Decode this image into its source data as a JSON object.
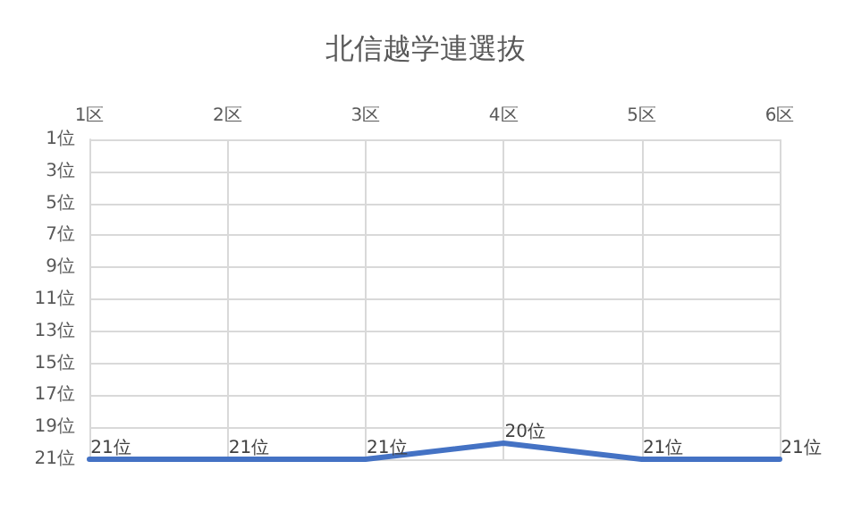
{
  "chart_data": {
    "type": "line",
    "title": "北信越学連選抜",
    "categories": [
      "1区",
      "2区",
      "3区",
      "4区",
      "5区",
      "6区"
    ],
    "series": [
      {
        "color": "#4472c4",
        "values": [
          21,
          21,
          21,
          20,
          21,
          21
        ],
        "value_labels": [
          "21位",
          "21位",
          "21位",
          "20位",
          "21位",
          "21位"
        ]
      }
    ],
    "ylim": [
      21,
      1
    ],
    "yticks": [
      {
        "value": 1,
        "label": "1位"
      },
      {
        "value": 3,
        "label": "3位"
      },
      {
        "value": 5,
        "label": "5位"
      },
      {
        "value": 7,
        "label": "7位"
      },
      {
        "value": 9,
        "label": "9位"
      },
      {
        "value": 11,
        "label": "11位"
      },
      {
        "value": 13,
        "label": "13位"
      },
      {
        "value": 15,
        "label": "15位"
      },
      {
        "value": 17,
        "label": "17位"
      },
      {
        "value": 19,
        "label": "19位"
      },
      {
        "value": 21,
        "label": "21位"
      }
    ],
    "grid": true,
    "marker": "none",
    "line_style": "solid"
  }
}
